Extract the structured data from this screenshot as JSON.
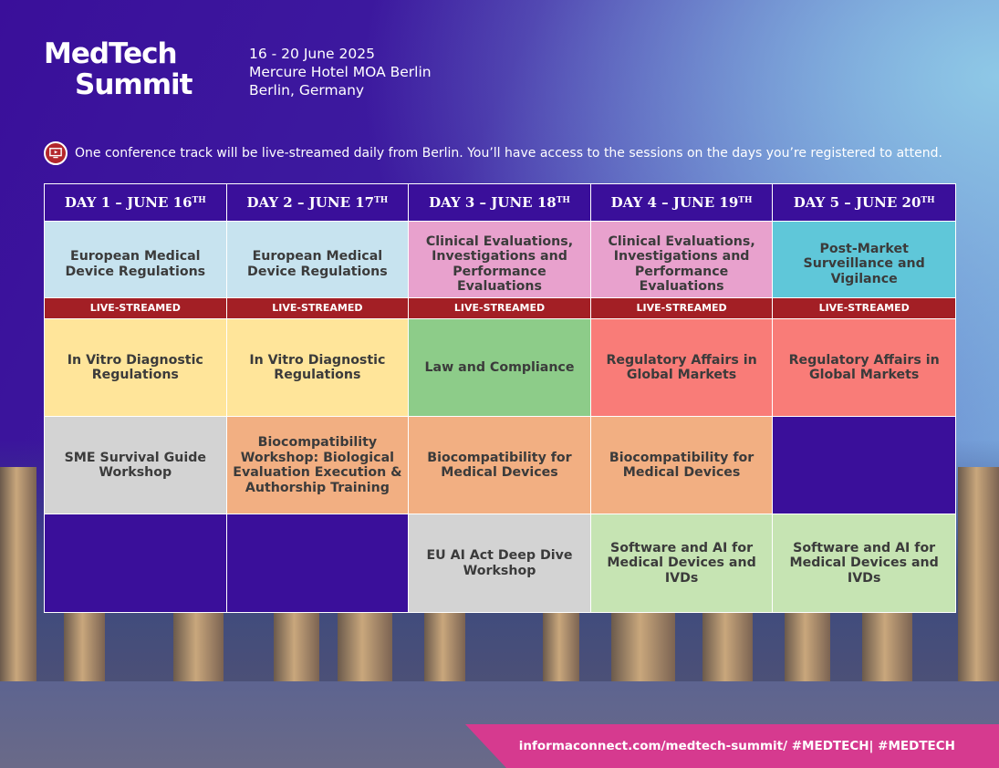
{
  "brand": {
    "line1": "MedTech",
    "line2": "Summit"
  },
  "event": {
    "dates": "16 - 20 June 2025",
    "venue": "Mercure Hotel MOA Berlin",
    "city": "Berlin, Germany"
  },
  "notice": {
    "icon": "monitor-icon",
    "text": "One conference track will be live-streamed daily from Berlin. You’ll have access to the sessions on the days you’re registered to attend."
  },
  "days": [
    {
      "label": "DAY 1 – JUNE 16",
      "sup": "TH"
    },
    {
      "label": "DAY 2 – JUNE 17",
      "sup": "TH"
    },
    {
      "label": "DAY 3 – JUNE 18",
      "sup": "TH"
    },
    {
      "label": "DAY 4 – JUNE 19",
      "sup": "TH"
    },
    {
      "label": "DAY 5 – JUNE 20",
      "sup": "TH"
    }
  ],
  "live_label": "LIVE-STREAMED",
  "rows": [
    [
      "European Medical Device Regulations",
      "European Medical Device Regulations",
      "Clinical Evaluations, Investigations and Performance Evaluations",
      "Clinical Evaluations, Investigations and Performance Evaluations",
      "Post-Market Surveillance and Vigilance"
    ],
    [
      "In Vitro Diagnostic Regulations",
      "In Vitro Diagnostic Regulations",
      "Law and Compliance",
      "Regulatory Affairs in Global Markets",
      "Regulatory Affairs in Global Markets"
    ],
    [
      "SME Survival Guide Workshop",
      "Biocompatibility Workshop: Biological Evaluation Execution & Authorship Training",
      "Biocompatibility for Medical Devices",
      "Biocompatibility for Medical Devices",
      ""
    ],
    [
      "",
      "",
      "EU AI Act Deep Dive Workshop",
      "Software and AI for Medical Devices and IVDs",
      "Software and AI for Medical Devices and IVDs"
    ]
  ],
  "colors": {
    "purple": "#3a0f9a",
    "live_red": "#a31f25",
    "footer_pink": "#d63a8f"
  },
  "footer": {
    "text": "informaconnect.com/medtech-summit/ #MEDTECH| #MEDTECH"
  }
}
